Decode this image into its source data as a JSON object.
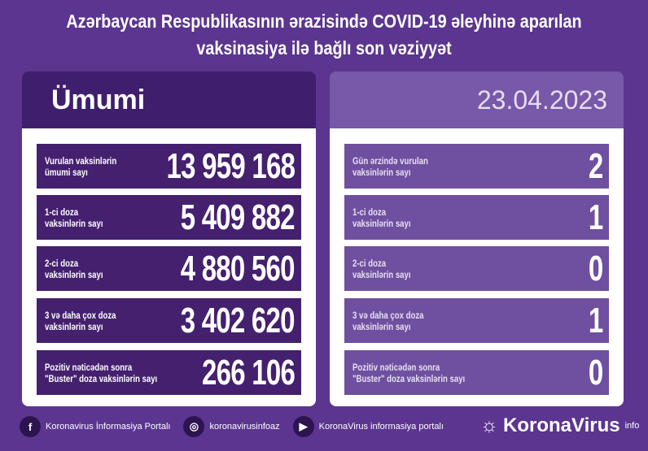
{
  "title": {
    "line1": "Azərbaycan Respublikasının ərazisində COVID-19 əleyhinə aparılan",
    "line2": "vaksinasiya ilə bağlı son vəziyyət"
  },
  "left": {
    "header": "Ümumi",
    "rows": [
      {
        "label1": "Vurulan vaksinlərin",
        "label2": "ümumi sayı",
        "value": "13 959 168"
      },
      {
        "label1": "1-ci doza",
        "label2": "vaksinlərin sayı",
        "value": "5 409 882"
      },
      {
        "label1": "2-ci doza",
        "label2": "vaksinlərin sayı",
        "value": "4 880 560"
      },
      {
        "label1": "3 və daha çox doza",
        "label2": "vaksinlərin sayı",
        "value": "3 402 620"
      },
      {
        "label1": "Pozitiv nəticədən sonra",
        "label2": "\"Buster\" doza vaksinlərin sayı",
        "value": "266 106"
      }
    ]
  },
  "right": {
    "header": "23.04.2023",
    "rows": [
      {
        "label1": "Gün ərzində vurulan",
        "label2": "vaksinlərin sayı",
        "value": "2"
      },
      {
        "label1": "1-ci doza",
        "label2": "vaksinlərin sayı",
        "value": "1"
      },
      {
        "label1": "2-ci doza",
        "label2": "vaksinlərin sayı",
        "value": "0"
      },
      {
        "label1": "3 və daha çox doza",
        "label2": "vaksinlərin sayı",
        "value": "1"
      },
      {
        "label1": "Pozitiv nəticədən sonra",
        "label2": "\"Buster\" doza vaksinlərin sayı",
        "value": "0"
      }
    ]
  },
  "footer": {
    "facebook": "Koronavirus İnformasiya Portalı",
    "instagram": "koronavirusinfoaz",
    "youtube": "KoronaVirus informasiya portalı",
    "brand": "KoronaVirus",
    "brand_sup": "info"
  }
}
